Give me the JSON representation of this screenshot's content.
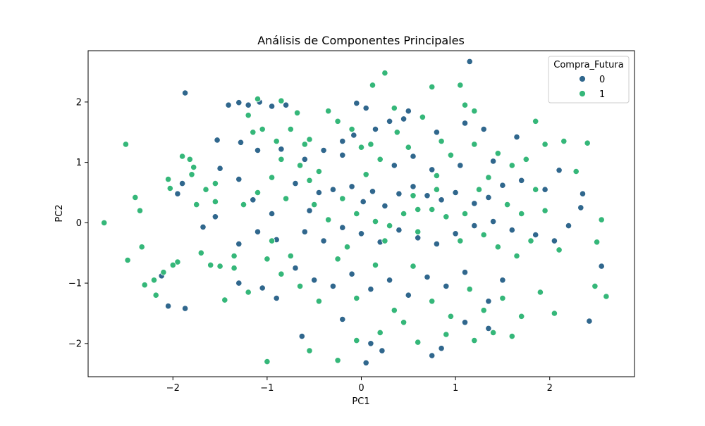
{
  "chart_data": {
    "type": "scatter",
    "title": "Análisis de Componentes Principales",
    "xlabel": "PC1",
    "ylabel": "PC2",
    "xlim": [
      -2.9,
      2.9
    ],
    "ylim": [
      -2.55,
      2.85
    ],
    "xticks": [
      -2,
      -1,
      0,
      1,
      2
    ],
    "yticks": [
      -2,
      -1,
      0,
      1,
      2
    ],
    "xtick_labels": [
      "−2",
      "−1",
      "0",
      "1",
      "2"
    ],
    "ytick_labels": [
      "−2",
      "−1",
      "0",
      "1",
      "2"
    ],
    "grid": false,
    "legend": {
      "title": "Compra_Futura",
      "placement": "top-right"
    },
    "series": [
      {
        "name": "0",
        "color": "#30678d",
        "points": [
          [
            -1.87,
            2.15
          ],
          [
            -1.41,
            1.95
          ],
          [
            -1.3,
            1.99
          ],
          [
            -1.2,
            1.95
          ],
          [
            -1.08,
            2.0
          ],
          [
            -0.95,
            1.93
          ],
          [
            -0.8,
            1.95
          ],
          [
            -1.53,
            1.37
          ],
          [
            -1.28,
            1.33
          ],
          [
            -1.1,
            1.2
          ],
          [
            -0.85,
            1.22
          ],
          [
            -0.6,
            1.05
          ],
          [
            -0.4,
            1.2
          ],
          [
            -0.2,
            1.12
          ],
          [
            -0.08,
            1.45
          ],
          [
            0.15,
            1.55
          ],
          [
            0.3,
            1.68
          ],
          [
            0.45,
            1.72
          ],
          [
            0.05,
            1.9
          ],
          [
            -0.05,
            1.98
          ],
          [
            -1.9,
            0.65
          ],
          [
            -1.95,
            0.48
          ],
          [
            -1.5,
            0.9
          ],
          [
            -1.3,
            0.72
          ],
          [
            -1.15,
            0.38
          ],
          [
            -0.7,
            0.65
          ],
          [
            -0.45,
            0.5
          ],
          [
            -0.3,
            0.55
          ],
          [
            -0.1,
            0.6
          ],
          [
            0.02,
            0.35
          ],
          [
            0.12,
            0.52
          ],
          [
            0.25,
            0.28
          ],
          [
            0.4,
            0.48
          ],
          [
            0.55,
            0.6
          ],
          [
            0.7,
            0.45
          ],
          [
            0.85,
            0.38
          ],
          [
            1.0,
            0.5
          ],
          [
            1.2,
            0.32
          ],
          [
            1.35,
            0.42
          ],
          [
            1.5,
            0.62
          ],
          [
            1.7,
            0.7
          ],
          [
            1.95,
            0.55
          ],
          [
            2.1,
            0.87
          ],
          [
            2.35,
            0.48
          ],
          [
            2.33,
            0.25
          ],
          [
            2.2,
            -0.05
          ],
          [
            -1.68,
            -0.07
          ],
          [
            -1.55,
            0.1
          ],
          [
            -1.3,
            -0.35
          ],
          [
            -1.1,
            -0.15
          ],
          [
            -0.9,
            -0.28
          ],
          [
            -0.6,
            -0.15
          ],
          [
            -0.4,
            -0.3
          ],
          [
            -0.2,
            -0.08
          ],
          [
            0.0,
            -0.18
          ],
          [
            0.2,
            -0.32
          ],
          [
            0.4,
            -0.12
          ],
          [
            0.6,
            -0.25
          ],
          [
            0.8,
            -0.35
          ],
          [
            1.0,
            -0.18
          ],
          [
            1.2,
            -0.05
          ],
          [
            1.4,
            0.02
          ],
          [
            1.6,
            -0.12
          ],
          [
            1.85,
            -0.2
          ],
          [
            2.05,
            -0.3
          ],
          [
            -2.12,
            -0.88
          ],
          [
            -2.05,
            -1.38
          ],
          [
            -1.87,
            -1.42
          ],
          [
            -1.3,
            -1.0
          ],
          [
            -1.05,
            -1.08
          ],
          [
            -0.9,
            -1.25
          ],
          [
            -0.7,
            -0.75
          ],
          [
            -0.5,
            -0.95
          ],
          [
            -0.3,
            -1.05
          ],
          [
            -0.1,
            -0.85
          ],
          [
            0.1,
            -1.1
          ],
          [
            0.3,
            -0.95
          ],
          [
            0.5,
            -1.2
          ],
          [
            0.7,
            -0.9
          ],
          [
            0.9,
            -1.05
          ],
          [
            1.1,
            -0.82
          ],
          [
            1.35,
            -1.3
          ],
          [
            1.5,
            -0.95
          ],
          [
            -0.63,
            -1.88
          ],
          [
            -0.2,
            -1.6
          ],
          [
            0.1,
            -2.0
          ],
          [
            0.22,
            -2.12
          ],
          [
            0.05,
            -2.32
          ],
          [
            0.75,
            -2.2
          ],
          [
            0.85,
            -2.08
          ],
          [
            1.1,
            -1.65
          ],
          [
            1.35,
            -1.75
          ],
          [
            2.42,
            -1.63
          ],
          [
            2.55,
            -0.72
          ],
          [
            1.15,
            2.67
          ],
          [
            0.5,
            1.85
          ],
          [
            0.8,
            1.5
          ],
          [
            1.1,
            1.65
          ],
          [
            1.3,
            1.55
          ],
          [
            1.65,
            1.42
          ],
          [
            1.4,
            1.02
          ],
          [
            -0.2,
            1.35
          ],
          [
            0.35,
            0.95
          ],
          [
            0.55,
            1.1
          ],
          [
            0.75,
            0.88
          ],
          [
            1.05,
            0.95
          ],
          [
            -0.95,
            0.15
          ],
          [
            -0.55,
            0.2
          ]
        ]
      },
      {
        "name": "1",
        "color": "#35b779",
        "points": [
          [
            -2.73,
            0.0
          ],
          [
            -2.5,
            1.3
          ],
          [
            -2.48,
            -0.62
          ],
          [
            -2.4,
            0.42
          ],
          [
            -2.35,
            0.2
          ],
          [
            -2.33,
            -0.4
          ],
          [
            -2.3,
            -1.03
          ],
          [
            -2.2,
            -0.95
          ],
          [
            -2.18,
            -1.2
          ],
          [
            -2.1,
            -0.82
          ],
          [
            -2.03,
            0.57
          ],
          [
            -1.95,
            -0.65
          ],
          [
            -1.9,
            1.1
          ],
          [
            -1.8,
            0.8
          ],
          [
            -1.75,
            0.3
          ],
          [
            -1.7,
            -0.5
          ],
          [
            -1.65,
            0.55
          ],
          [
            -1.55,
            0.65
          ],
          [
            -1.5,
            -0.72
          ],
          [
            -1.45,
            -1.28
          ],
          [
            -1.35,
            -0.55
          ],
          [
            -1.2,
            1.78
          ],
          [
            -1.1,
            2.05
          ],
          [
            -1.05,
            1.55
          ],
          [
            -0.9,
            1.35
          ],
          [
            -0.85,
            2.02
          ],
          [
            -0.75,
            1.55
          ],
          [
            -0.68,
            1.82
          ],
          [
            -0.55,
            1.38
          ],
          [
            -0.45,
            0.85
          ],
          [
            -0.35,
            1.85
          ],
          [
            -0.25,
            1.68
          ],
          [
            -0.1,
            1.55
          ],
          [
            0.0,
            1.25
          ],
          [
            0.1,
            1.3
          ],
          [
            0.2,
            1.05
          ],
          [
            0.25,
            2.48
          ],
          [
            0.12,
            2.28
          ],
          [
            0.38,
            1.5
          ],
          [
            0.5,
            1.25
          ],
          [
            0.65,
            1.75
          ],
          [
            0.75,
            2.25
          ],
          [
            0.85,
            1.35
          ],
          [
            0.95,
            1.12
          ],
          [
            1.05,
            2.28
          ],
          [
            1.1,
            1.95
          ],
          [
            1.2,
            1.3
          ],
          [
            1.35,
            0.75
          ],
          [
            1.45,
            1.15
          ],
          [
            1.6,
            0.95
          ],
          [
            1.75,
            1.05
          ],
          [
            1.85,
            0.55
          ],
          [
            1.95,
            1.3
          ],
          [
            2.15,
            1.35
          ],
          [
            2.28,
            0.85
          ],
          [
            2.4,
            1.32
          ],
          [
            2.5,
            -0.32
          ],
          [
            2.55,
            0.05
          ],
          [
            2.6,
            -1.22
          ],
          [
            2.48,
            -1.05
          ],
          [
            -1.1,
            0.5
          ],
          [
            -0.95,
            0.75
          ],
          [
            -0.8,
            0.4
          ],
          [
            -0.65,
            0.95
          ],
          [
            -0.5,
            0.3
          ],
          [
            -0.35,
            0.05
          ],
          [
            -0.2,
            0.4
          ],
          [
            -0.05,
            0.15
          ],
          [
            0.15,
            0.02
          ],
          [
            0.3,
            -0.05
          ],
          [
            0.45,
            0.15
          ],
          [
            0.6,
            -0.15
          ],
          [
            0.75,
            0.22
          ],
          [
            0.9,
            0.1
          ],
          [
            1.05,
            -0.3
          ],
          [
            1.25,
            0.55
          ],
          [
            1.45,
            -0.4
          ],
          [
            1.65,
            -0.55
          ],
          [
            1.8,
            -0.3
          ],
          [
            1.95,
            0.2
          ],
          [
            2.1,
            -0.45
          ],
          [
            -1.35,
            -0.75
          ],
          [
            -1.2,
            -1.15
          ],
          [
            -1.0,
            -0.6
          ],
          [
            -0.85,
            -0.85
          ],
          [
            -0.65,
            -1.05
          ],
          [
            -0.45,
            -1.3
          ],
          [
            -0.25,
            -0.6
          ],
          [
            -0.05,
            -1.25
          ],
          [
            0.15,
            -0.7
          ],
          [
            0.35,
            -1.45
          ],
          [
            0.55,
            -0.72
          ],
          [
            0.75,
            -1.3
          ],
          [
            0.95,
            -1.55
          ],
          [
            1.15,
            -1.1
          ],
          [
            1.3,
            -1.45
          ],
          [
            1.5,
            -1.25
          ],
          [
            1.7,
            -1.55
          ],
          [
            1.9,
            -1.15
          ],
          [
            2.05,
            -1.5
          ],
          [
            -1.0,
            -2.3
          ],
          [
            -0.55,
            -2.12
          ],
          [
            -0.25,
            -2.28
          ],
          [
            -0.05,
            -1.95
          ],
          [
            0.2,
            -1.82
          ],
          [
            0.45,
            -1.65
          ],
          [
            0.6,
            -1.98
          ],
          [
            0.9,
            -1.85
          ],
          [
            1.2,
            -1.95
          ],
          [
            1.4,
            -1.82
          ],
          [
            1.6,
            -1.88
          ],
          [
            -1.6,
            -0.7
          ],
          [
            -1.55,
            0.35
          ],
          [
            -1.25,
            0.3
          ],
          [
            -0.95,
            -0.3
          ],
          [
            -0.75,
            -0.55
          ],
          [
            -0.55,
            0.7
          ],
          [
            -0.15,
            -0.4
          ],
          [
            0.05,
            0.8
          ],
          [
            0.25,
            -0.3
          ],
          [
            0.55,
            0.45
          ],
          [
            0.8,
            0.55
          ],
          [
            1.1,
            0.15
          ],
          [
            1.3,
            -0.2
          ],
          [
            1.55,
            0.3
          ],
          [
            1.7,
            0.15
          ],
          [
            -1.15,
            1.5
          ],
          [
            -0.85,
            1.05
          ],
          [
            -0.6,
            1.3
          ],
          [
            0.35,
            1.9
          ],
          [
            1.2,
            1.85
          ],
          [
            1.85,
            1.68
          ],
          [
            -2.05,
            0.72
          ],
          [
            -1.78,
            0.92
          ],
          [
            -2.0,
            -0.7
          ],
          [
            -1.82,
            1.05
          ],
          [
            0.8,
            0.78
          ],
          [
            0.6,
            0.22
          ]
        ]
      }
    ]
  }
}
